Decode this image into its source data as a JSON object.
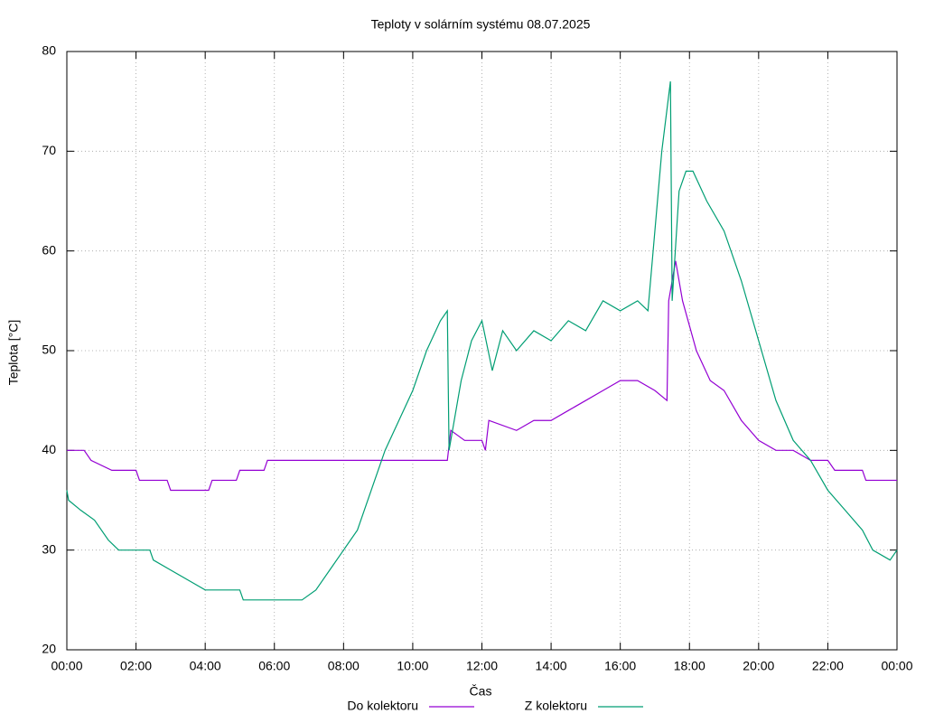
{
  "chart_data": {
    "type": "line",
    "title": "Teploty v solárním systému 08.07.2025",
    "x_label": "Čas",
    "y_label": "Teplota [°C]",
    "xlim": [
      0,
      24
    ],
    "ylim": [
      20,
      80
    ],
    "grid": true,
    "legend": "bottom",
    "xticks": [
      {
        "value": 0,
        "label": "00:00"
      },
      {
        "value": 2,
        "label": "02:00"
      },
      {
        "value": 4,
        "label": "04:00"
      },
      {
        "value": 6,
        "label": "06:00"
      },
      {
        "value": 8,
        "label": "08:00"
      },
      {
        "value": 10,
        "label": "10:00"
      },
      {
        "value": 12,
        "label": "12:00"
      },
      {
        "value": 14,
        "label": "14:00"
      },
      {
        "value": 16,
        "label": "16:00"
      },
      {
        "value": 18,
        "label": "18:00"
      },
      {
        "value": 20,
        "label": "20:00"
      },
      {
        "value": 22,
        "label": "22:00"
      },
      {
        "value": 24,
        "label": "00:00"
      }
    ],
    "yticks": [
      20,
      30,
      40,
      50,
      60,
      70,
      80
    ],
    "series": [
      {
        "name": "Do kolektoru",
        "color": "#9400d3",
        "x": [
          0,
          0.5,
          0.7,
          1.3,
          2.0,
          2.1,
          2.9,
          3.0,
          4.1,
          4.2,
          4.9,
          5.0,
          5.7,
          5.8,
          8.5,
          9.0,
          10.5,
          11.0,
          11.1,
          11.5,
          12.0,
          12.1,
          12.2,
          13.0,
          13.5,
          14.0,
          14.5,
          15.0,
          15.5,
          16.0,
          16.5,
          17.0,
          17.35,
          17.4,
          17.6,
          17.8,
          18.2,
          18.6,
          19.0,
          19.5,
          20.0,
          20.5,
          21.0,
          21.5,
          22.0,
          22.2,
          23.0,
          23.1,
          24.0
        ],
        "values": [
          40,
          40,
          39,
          38,
          38,
          37,
          37,
          36,
          36,
          37,
          37,
          38,
          38,
          39,
          39,
          39,
          39,
          39,
          42,
          41,
          41,
          40,
          43,
          42,
          43,
          43,
          44,
          45,
          46,
          47,
          47,
          46,
          45,
          55,
          59,
          55,
          50,
          47,
          46,
          43,
          41,
          40,
          40,
          39,
          39,
          38,
          38,
          37,
          37
        ]
      },
      {
        "name": "Z kolektoru",
        "color": "#009e73",
        "x": [
          0,
          0.05,
          0.4,
          0.8,
          1.2,
          1.5,
          2.4,
          2.5,
          3.0,
          3.5,
          4.0,
          5.0,
          5.1,
          6.8,
          7.2,
          7.6,
          8.0,
          8.4,
          8.8,
          9.2,
          9.6,
          10.0,
          10.4,
          10.8,
          11.0,
          11.05,
          11.4,
          11.7,
          12.0,
          12.3,
          12.6,
          13.0,
          13.5,
          14.0,
          14.5,
          15.0,
          15.5,
          16.0,
          16.5,
          16.8,
          17.0,
          17.2,
          17.45,
          17.5,
          17.7,
          17.9,
          18.1,
          18.5,
          19.0,
          19.5,
          20.0,
          20.5,
          21.0,
          21.5,
          22.0,
          22.5,
          23.0,
          23.3,
          23.8,
          24.0
        ],
        "values": [
          36,
          35,
          34,
          33,
          31,
          30,
          30,
          29,
          28,
          27,
          26,
          26,
          25,
          25,
          26,
          28,
          30,
          32,
          36,
          40,
          43,
          46,
          50,
          53,
          54,
          40,
          47,
          51,
          53,
          48,
          52,
          50,
          52,
          51,
          53,
          52,
          55,
          54,
          55,
          54,
          62,
          70,
          77,
          55,
          66,
          68,
          68,
          65,
          62,
          57,
          51,
          45,
          41,
          39,
          36,
          34,
          32,
          30,
          29,
          30
        ]
      }
    ]
  }
}
